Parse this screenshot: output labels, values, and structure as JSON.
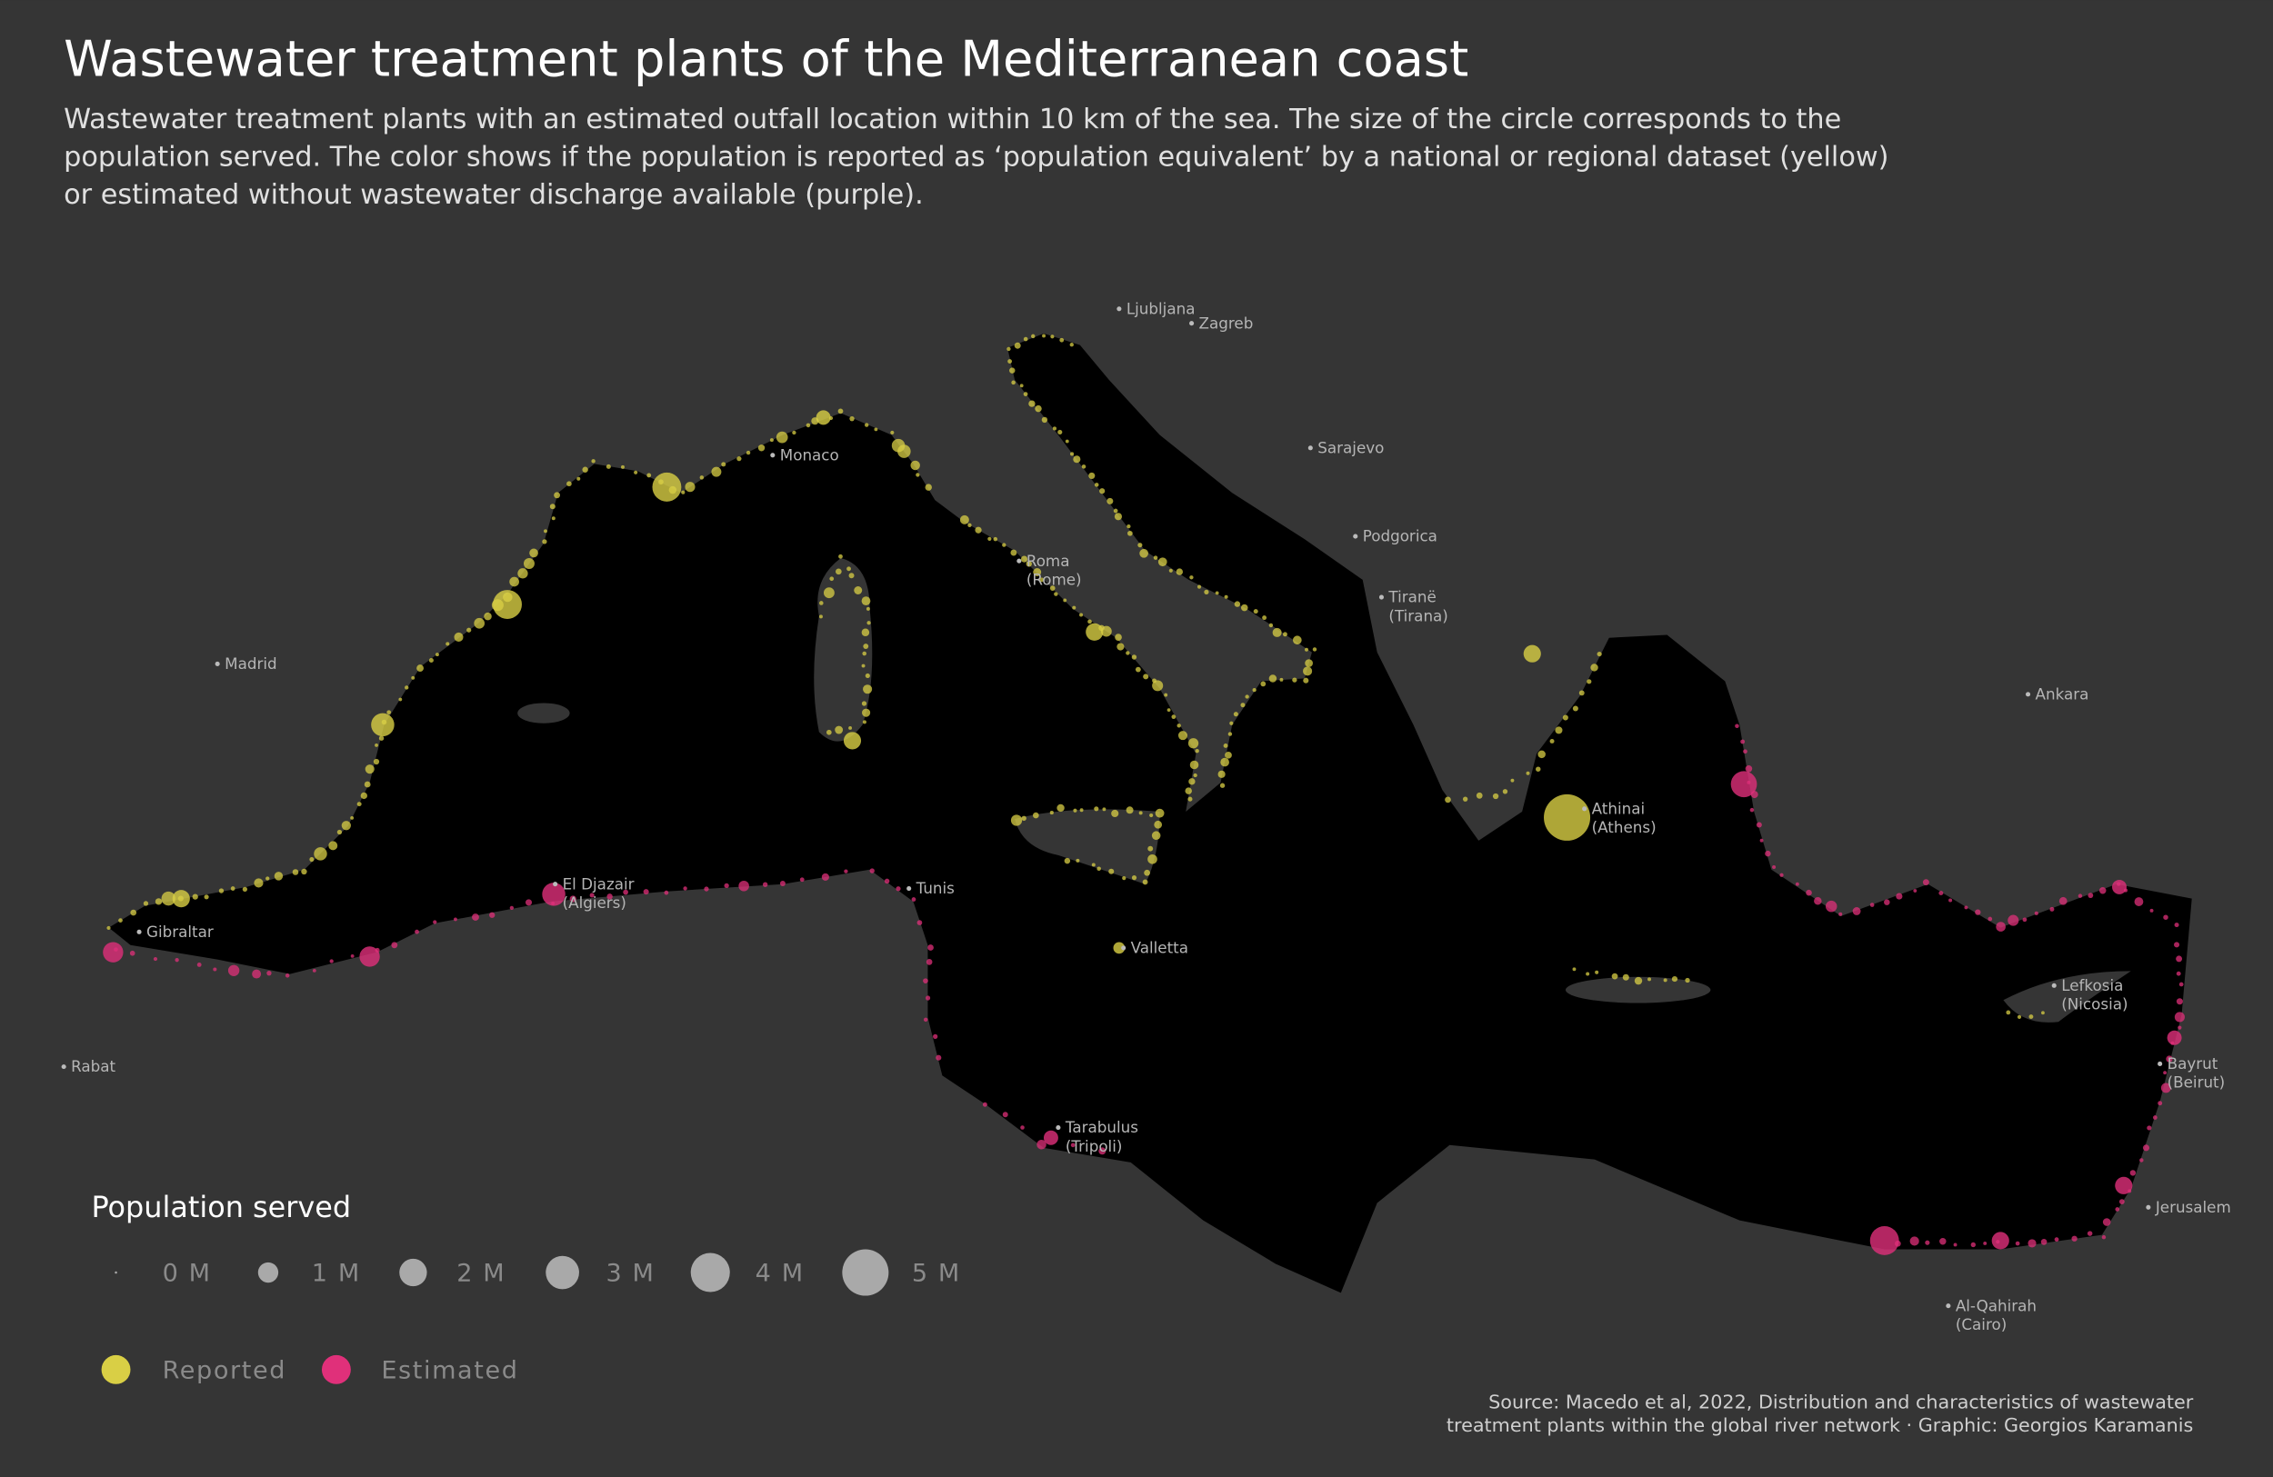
{
  "header": {
    "title": "Wastewater treatment plants of the Mediterranean coast",
    "subtitle": [
      "Wastewater treatment plants with an estimated outfall location within 10 km of the sea. The size of the circle corresponds to the",
      "population served. The color shows if the population is reported as ‘population equivalent’ by a national or regional dataset (yellow)",
      "or estimated without wastewater discharge available (purple)."
    ]
  },
  "cities": [
    {
      "name": "Ljubljana"
    },
    {
      "name": "Zagreb"
    },
    {
      "name": "Sarajevo"
    },
    {
      "name": "Podgorica"
    },
    {
      "name": "Tiranë",
      "alt": "(Tirana)"
    },
    {
      "name": "Roma",
      "alt": "(Rome)"
    },
    {
      "name": "Monaco"
    },
    {
      "name": "Madrid"
    },
    {
      "name": "Gibraltar"
    },
    {
      "name": "Rabat"
    },
    {
      "name": "El Djazair",
      "alt": "(Algiers)"
    },
    {
      "name": "Tunis"
    },
    {
      "name": "Valletta"
    },
    {
      "name": "Tarabulus",
      "alt": "(Tripoli)"
    },
    {
      "name": "Athinai",
      "alt": "(Athens)"
    },
    {
      "name": "Ankara"
    },
    {
      "name": "Lefkosia",
      "alt": "(Nicosia)"
    },
    {
      "name": "Bayrut",
      "alt": "(Beirut)"
    },
    {
      "name": "Jerusalem"
    },
    {
      "name": "Al-Qahirah",
      "alt": "(Cairo)"
    }
  ],
  "legend": {
    "title": "Population served",
    "sizes": [
      "0 M",
      "1 M",
      "2 M",
      "3 M",
      "4 M",
      "5 M"
    ],
    "colors": [
      "Reported",
      "Estimated"
    ]
  },
  "source": [
    "Source: Macedo et al, 2022, Distribution and characteristics of wastewater",
    "treatment plants within the global river network · Graphic: Georgios Karamanis"
  ]
}
